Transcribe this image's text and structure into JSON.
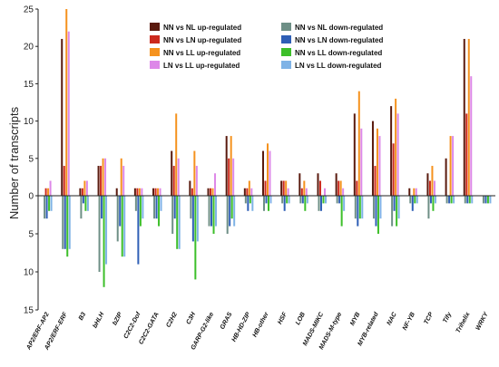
{
  "chart_data": {
    "type": "bar",
    "title": "",
    "xlabel": "",
    "ylabel": "Number of transcripts",
    "ylim_up": [
      0,
      25
    ],
    "ylim_down": [
      0,
      15
    ],
    "ticks_up": [
      "0",
      "5",
      "10",
      "15",
      "20",
      "25"
    ],
    "ticks_down": [
      "5",
      "10",
      "15"
    ],
    "categories": [
      "AP2/ERF-AP2",
      "AP2/ERF-ERF",
      "B3",
      "bHLH",
      "bZIP",
      "C2C2-Dof",
      "C2C2-GATA",
      "C2H2",
      "C3H",
      "GARP-G2-like",
      "GRAS",
      "HB-HD-ZIP",
      "HB-other",
      "HSF",
      "LOB",
      "MADS-MIKC",
      "MADS-M-type",
      "MYB",
      "MYB-related",
      "NAC",
      "NF-YB",
      "TCP",
      "Tify",
      "Trihelix",
      "WRKY"
    ],
    "legend_position": "top",
    "series": [
      {
        "name": "NN vs NL up-regulated",
        "direction": "up",
        "color": "#5a1a0e",
        "values": [
          0,
          21,
          1,
          4,
          1,
          1,
          1,
          6,
          2,
          1,
          8,
          1,
          6,
          2,
          3,
          3,
          3,
          11,
          10,
          12,
          1,
          3,
          5,
          21,
          0
        ]
      },
      {
        "name": "NN vs LN up-regulated",
        "direction": "up",
        "color": "#cc2a1e",
        "values": [
          1,
          4,
          1,
          4,
          0,
          1,
          1,
          4,
          1,
          1,
          5,
          1,
          2,
          2,
          1,
          2,
          2,
          2,
          4,
          7,
          0,
          2,
          0,
          11,
          0
        ]
      },
      {
        "name": "NN vs LL up-regulated",
        "direction": "up",
        "color": "#f5921e",
        "values": [
          1,
          25,
          2,
          5,
          5,
          1,
          1,
          11,
          6,
          1,
          8,
          2,
          7,
          2,
          2,
          0,
          2,
          14,
          9,
          13,
          1,
          4,
          8,
          21,
          0
        ]
      },
      {
        "name": "LN vs LL up-regulated",
        "direction": "up",
        "color": "#dd88e8",
        "values": [
          2,
          22,
          2,
          5,
          4,
          1,
          1,
          5,
          4,
          3,
          5,
          1,
          6,
          1,
          1,
          1,
          1,
          9,
          8,
          11,
          1,
          2,
          8,
          16,
          0
        ]
      },
      {
        "name": "NN vs NL down-regulated",
        "direction": "down",
        "color": "#6e8f86",
        "values": [
          3,
          7,
          3,
          10,
          6,
          2,
          3,
          5,
          3,
          4,
          5,
          1,
          2,
          1,
          1,
          2,
          1,
          3,
          3,
          4,
          1,
          3,
          1,
          1,
          1
        ]
      },
      {
        "name": "NN vs LN down-regulated",
        "direction": "down",
        "color": "#2f5fb6",
        "values": [
          3,
          7,
          1,
          3,
          4,
          9,
          3,
          3,
          6,
          4,
          4,
          2,
          1,
          2,
          1,
          2,
          1,
          4,
          4,
          2,
          2,
          1,
          1,
          1,
          1
        ]
      },
      {
        "name": "NN vs LL down-regulated",
        "direction": "down",
        "color": "#3dbf2a",
        "values": [
          2,
          8,
          2,
          12,
          8,
          4,
          4,
          7,
          11,
          5,
          3,
          1,
          2,
          1,
          2,
          1,
          4,
          3,
          5,
          4,
          1,
          2,
          1,
          1,
          1
        ]
      },
      {
        "name": "LN vs LL down-regulated",
        "direction": "down",
        "color": "#7fb3e6",
        "values": [
          2,
          7,
          2,
          9,
          8,
          3,
          2,
          7,
          6,
          4,
          4,
          2,
          1,
          1,
          1,
          1,
          2,
          3,
          3,
          3,
          1,
          1,
          1,
          1,
          1
        ]
      }
    ]
  }
}
